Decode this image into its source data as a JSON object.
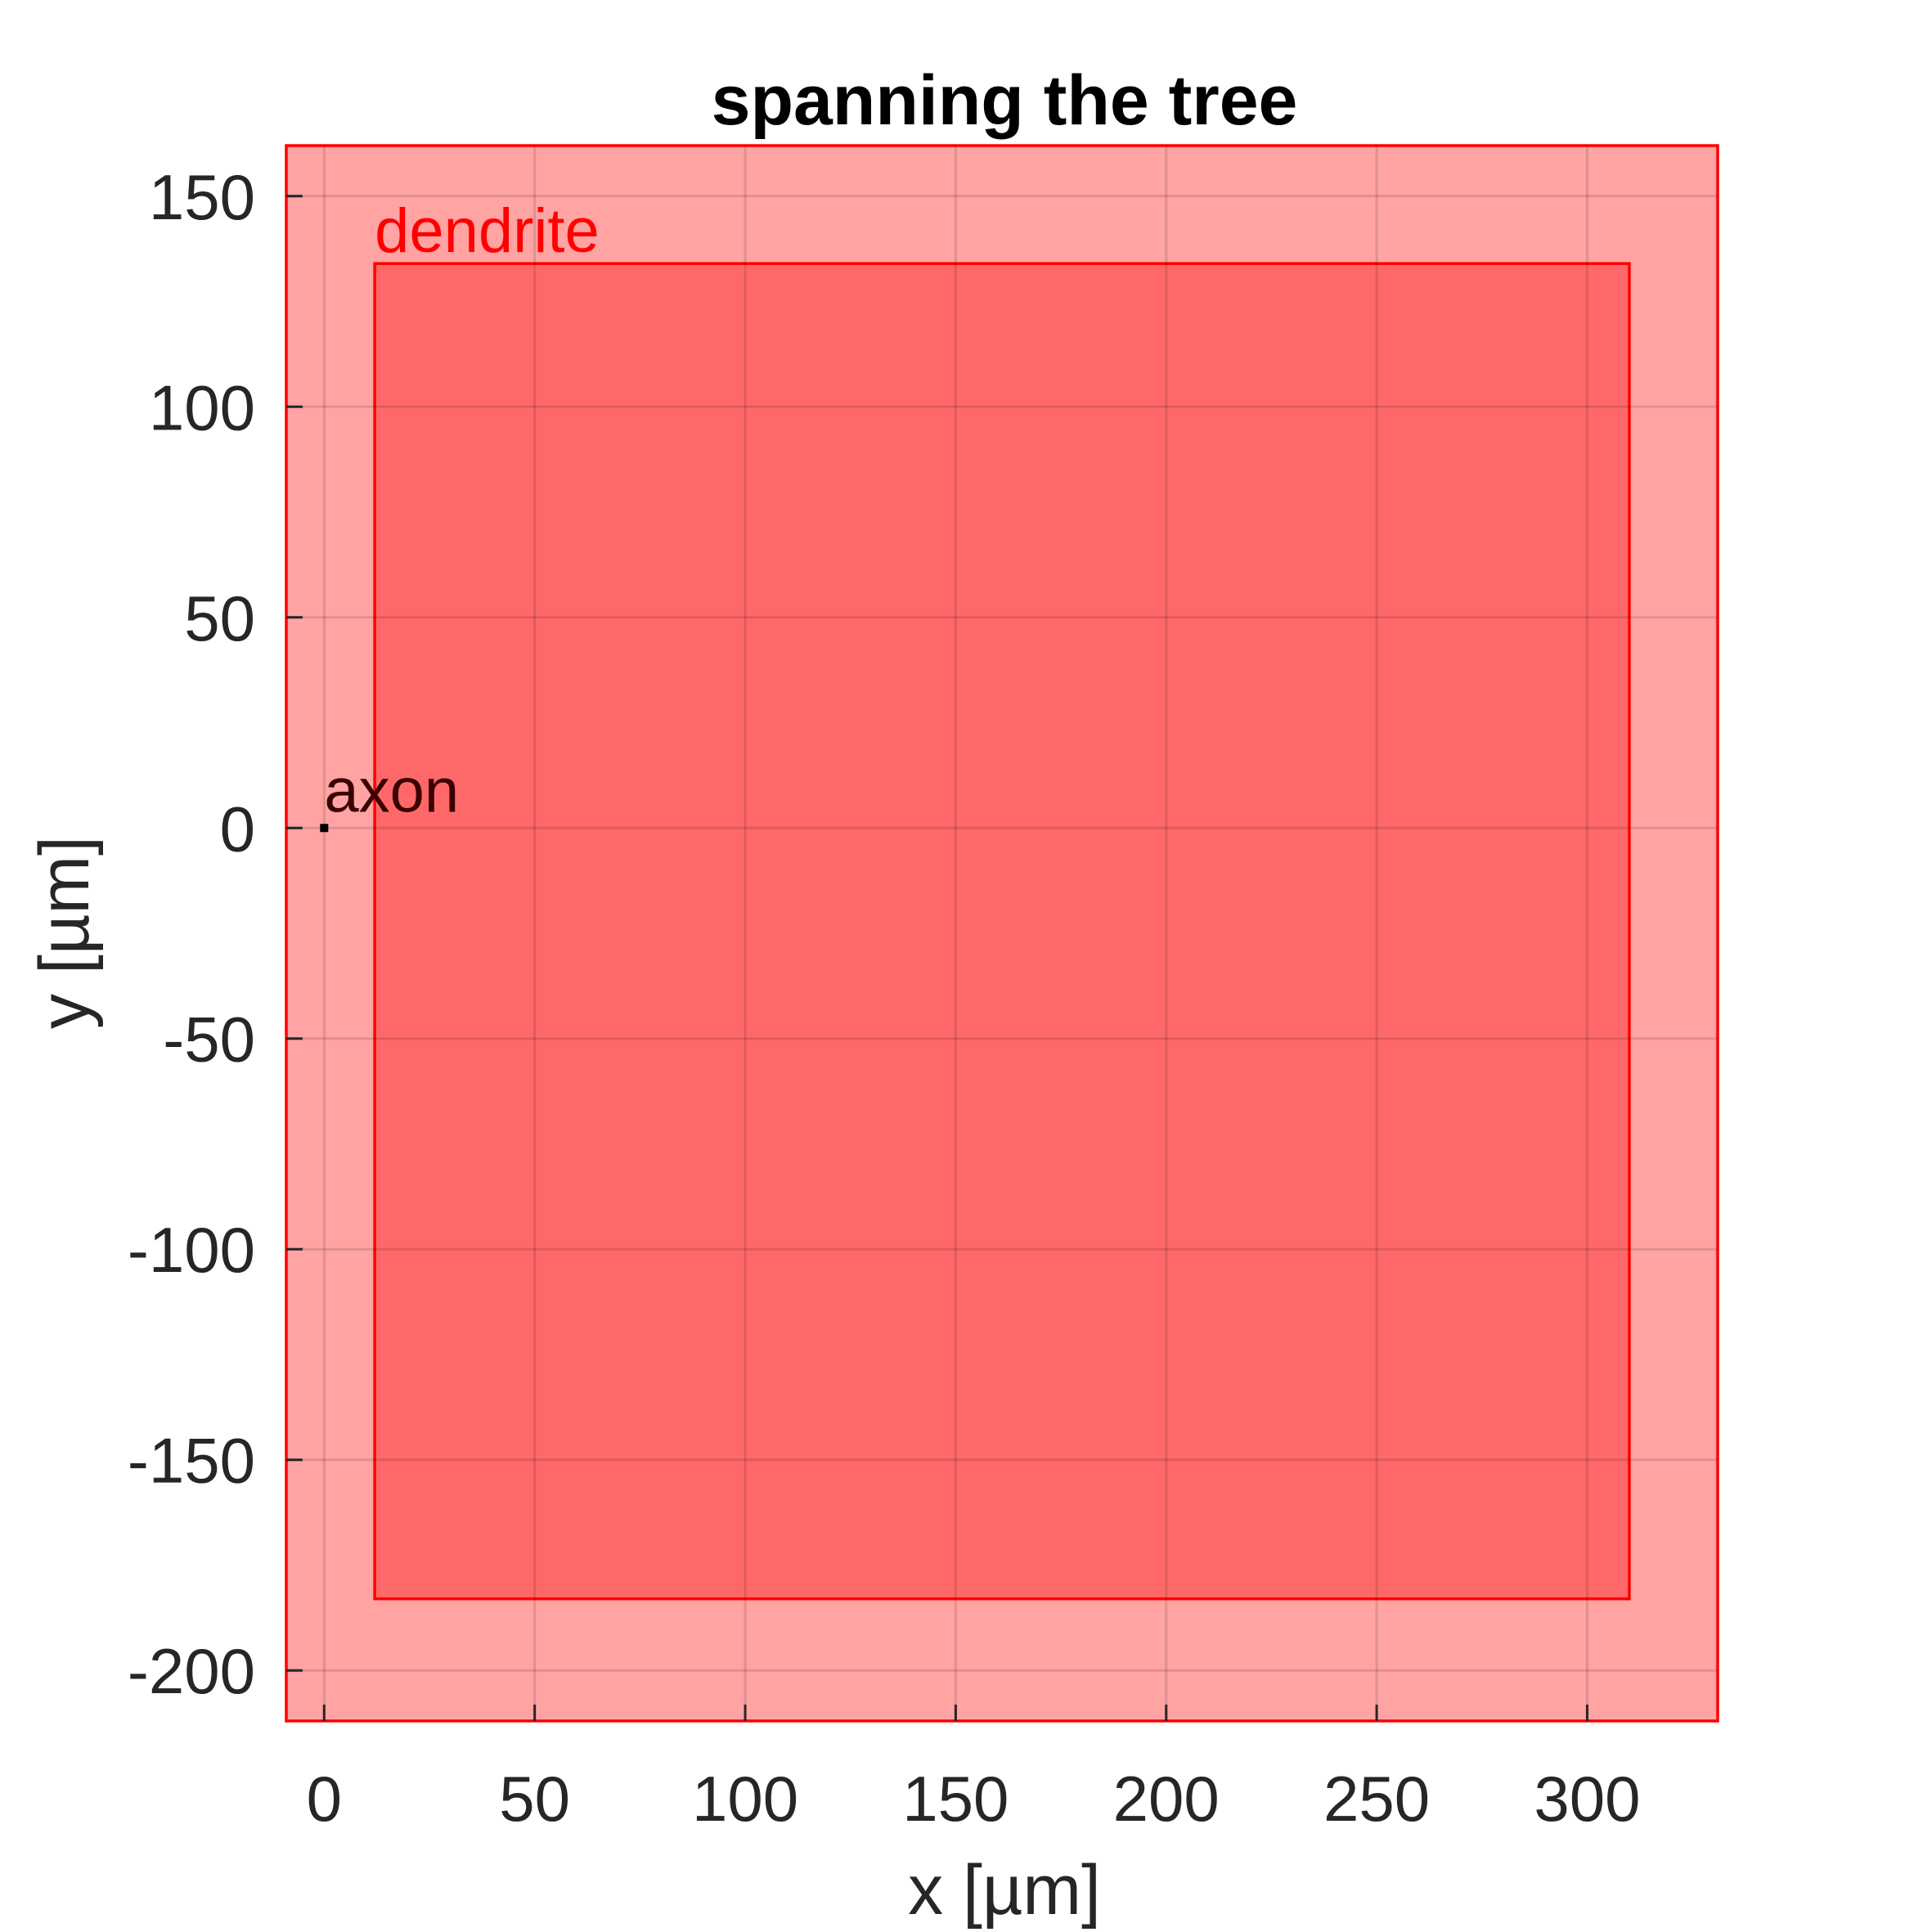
{
  "chart_data": {
    "type": "area",
    "title": "spanning the tree",
    "xlabel": "x [µm]",
    "ylabel": "y [µm]",
    "xlim": [
      -9,
      331
    ],
    "ylim": [
      -212,
      162
    ],
    "xticks": [
      0,
      50,
      100,
      150,
      200,
      250,
      300
    ],
    "yticks": [
      -200,
      -150,
      -100,
      -50,
      0,
      50,
      100,
      150
    ],
    "grid": true,
    "regions": [
      {
        "label": "axon",
        "color": "#ff0000",
        "x": [
          -9,
          331
        ],
        "y": [
          -212,
          162
        ]
      },
      {
        "label": "dendrite",
        "color": "#ff0000",
        "x": [
          12,
          310
        ],
        "y": [
          -183,
          134
        ]
      }
    ],
    "points": [
      {
        "label": "axon",
        "x": 0,
        "y": 0
      }
    ]
  }
}
